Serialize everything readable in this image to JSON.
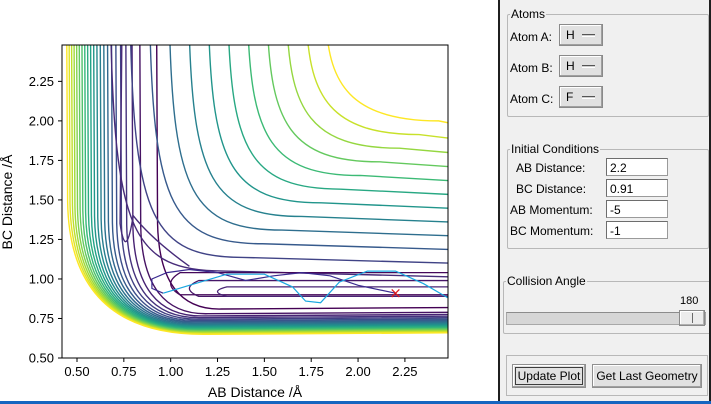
{
  "plot": {
    "xlabel": "AB Distance /Å",
    "ylabel": "BC Distance /Å",
    "x_ticks": [
      "0.50",
      "0.75",
      "1.00",
      "1.25",
      "1.50",
      "1.75",
      "2.00",
      "2.25"
    ],
    "y_ticks": [
      "0.50",
      "0.75",
      "1.00",
      "1.25",
      "1.50",
      "1.75",
      "2.00",
      "2.25"
    ],
    "marker_glyph": "×",
    "marker_color": "#e01a1a"
  },
  "chart_data": {
    "type": "contour",
    "xlabel": "AB Distance /Å",
    "ylabel": "BC Distance /Å",
    "xlim": [
      0.42,
      2.48
    ],
    "ylim": [
      0.5,
      2.48
    ],
    "x_ticks": [
      0.5,
      0.75,
      1.0,
      1.25,
      1.5,
      1.75,
      2.0,
      2.25
    ],
    "y_ticks": [
      0.5,
      0.75,
      1.0,
      1.25,
      1.5,
      1.75,
      2.0,
      2.25
    ],
    "colormap": "viridis",
    "grid": false,
    "final_position": {
      "x": 2.2,
      "y": 0.91,
      "marker": "x",
      "color": "#e01a1a"
    },
    "trajectory": {
      "name": "",
      "x": [
        2.2,
        2.0,
        1.85,
        1.7,
        1.55,
        1.4,
        1.25,
        1.1,
        0.98,
        0.9,
        0.9,
        0.96,
        1.1,
        1.3,
        1.5,
        1.65,
        1.72,
        1.8,
        1.9,
        2.05,
        2.2,
        2.35,
        2.48
      ],
      "y": [
        0.91,
        0.96,
        1.02,
        1.04,
        1.02,
        0.99,
        1.04,
        1.06,
        1.04,
        1.0,
        0.94,
        0.91,
        0.96,
        1.03,
        1.03,
        0.95,
        0.86,
        0.85,
        0.98,
        1.05,
        1.05,
        0.97,
        0.88
      ]
    }
  },
  "panel": {
    "atoms": {
      "legend": "Atoms",
      "atom_a_label": "Atom A:",
      "atom_a_value": "H",
      "atom_b_label": "Atom B:",
      "atom_b_value": "H",
      "atom_c_label": "Atom C:",
      "atom_c_value": "F"
    },
    "initial_conditions": {
      "legend": "Initial Conditions",
      "ab_distance_label": "AB Distance:",
      "ab_distance_value": "2.2",
      "bc_distance_label": "BC Distance:",
      "bc_distance_value": "0.91",
      "ab_momentum_label": "AB Momentum:",
      "ab_momentum_value": "-5",
      "bc_momentum_label": "BC Momentum:",
      "bc_momentum_value": "-1"
    },
    "collision_angle": {
      "legend": "Collision Angle",
      "value": "180",
      "min": 0,
      "max": 180
    },
    "buttons": {
      "update_plot": "Update Plot",
      "get_last_geometry": "Get Last Geometry"
    }
  }
}
